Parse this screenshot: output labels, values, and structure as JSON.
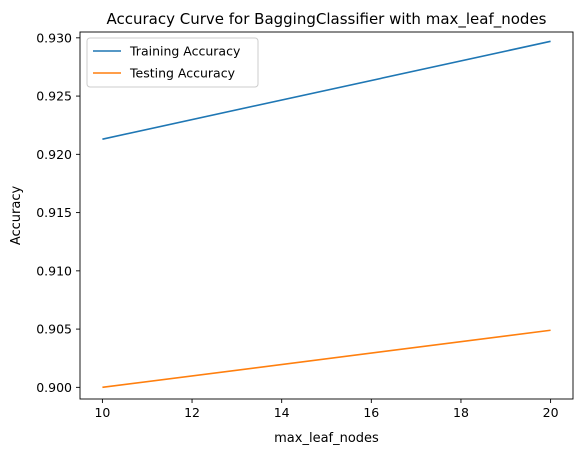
{
  "chart_data": {
    "type": "line",
    "title": "Accuracy Curve for BaggingClassifier with max_leaf_nodes",
    "xlabel": "max_leaf_nodes",
    "ylabel": "Accuracy",
    "x": [
      10,
      20
    ],
    "xlim": [
      9.5,
      20.5
    ],
    "ylim": [
      0.899,
      0.9305
    ],
    "xticks": [
      10,
      12,
      14,
      16,
      18,
      20
    ],
    "yticks": [
      0.9,
      0.905,
      0.91,
      0.915,
      0.92,
      0.925,
      0.93
    ],
    "ytick_labels": [
      "0.900",
      "0.905",
      "0.910",
      "0.915",
      "0.920",
      "0.925",
      "0.930"
    ],
    "grid": false,
    "legend_position": "upper-left",
    "series": [
      {
        "name": "Training Accuracy",
        "color": "#1f77b4",
        "values": [
          0.9213,
          0.9297
        ]
      },
      {
        "name": "Testing Accuracy",
        "color": "#ff7f0e",
        "values": [
          0.9,
          0.9049
        ]
      }
    ]
  }
}
